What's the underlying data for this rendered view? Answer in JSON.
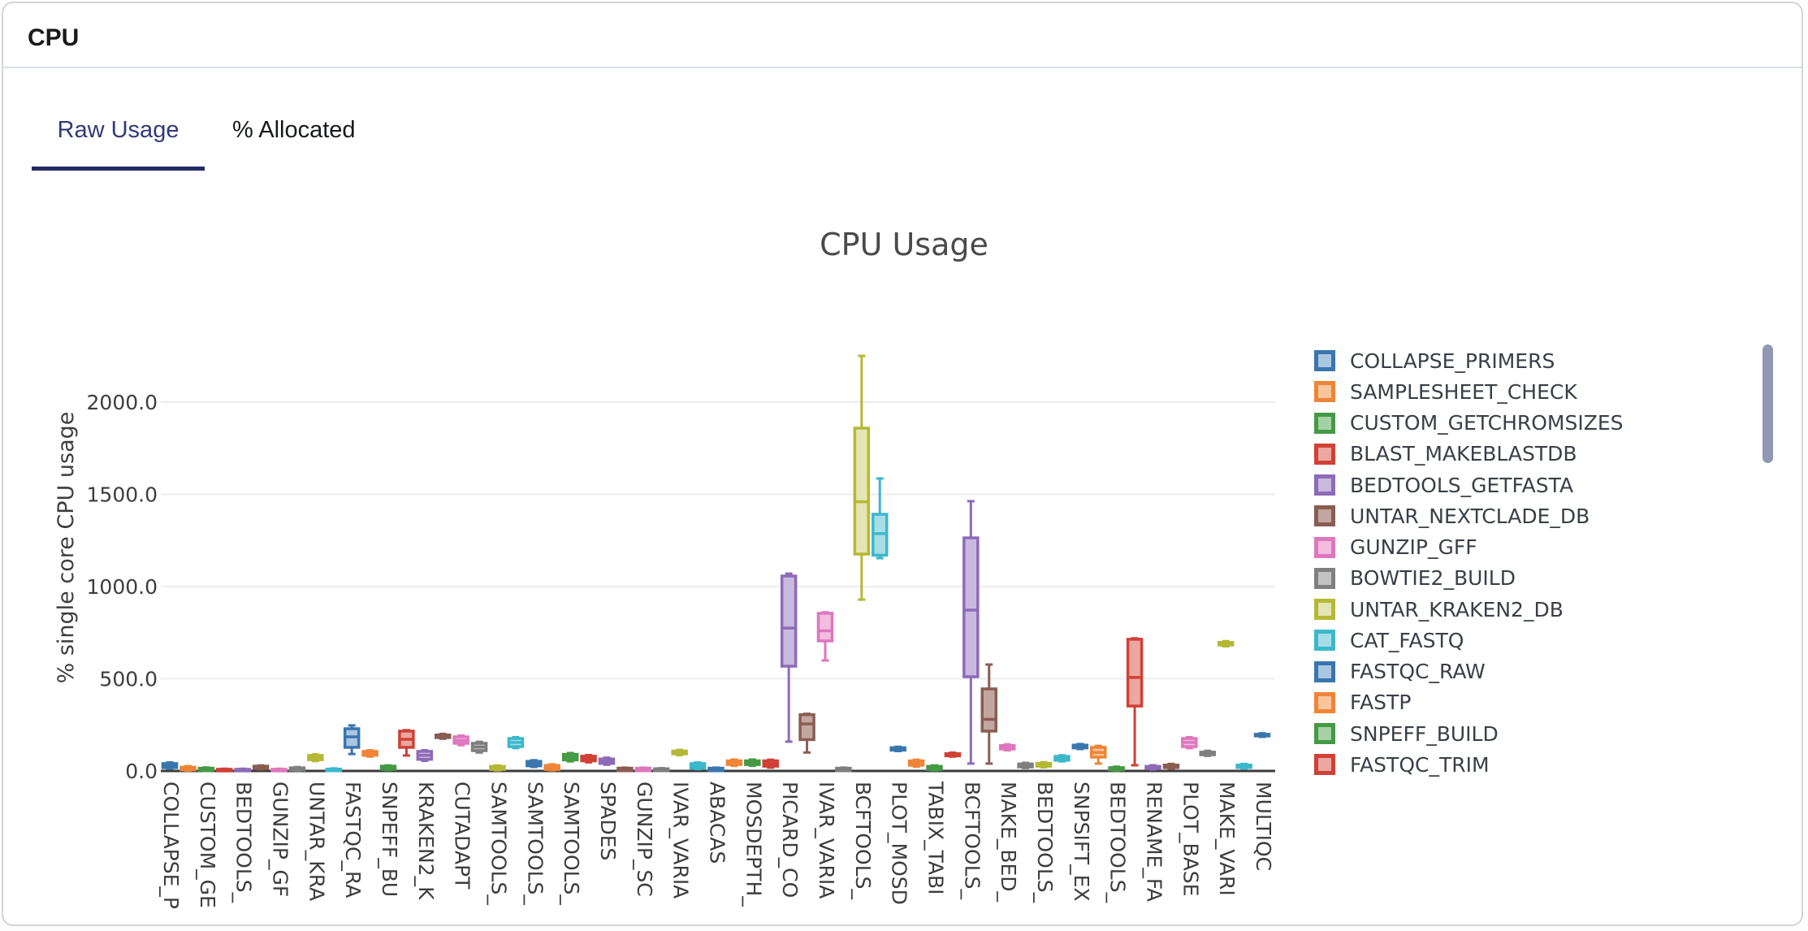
{
  "header": {
    "title": "CPU"
  },
  "tabs": {
    "raw_usage": "Raw Usage",
    "percent_allocated": "% Allocated"
  },
  "chart_data": {
    "type": "boxplot",
    "title": "CPU Usage",
    "ylabel": "% single core CPU usage",
    "ylim": [
      0,
      2350
    ],
    "grid": true,
    "legend_position": "right",
    "yticks": [
      0,
      500,
      1000,
      1500,
      2000
    ],
    "ytick_labels": [
      "0.0",
      "500.0",
      "1000.0",
      "1500.0",
      "2000.0"
    ],
    "x_tick_labels": [
      "COLLAPSE_P",
      "CUSTOM_GE",
      "BEDTOOLS_",
      "GUNZIP_GF",
      "UNTAR_KRA",
      "FASTQC_RA",
      "SNPEFF_BU",
      "KRAKEN2_K",
      "CUTADAPT",
      "SAMTOOLS_",
      "SAMTOOLS_",
      "SAMTOOLS_",
      "SPADES",
      "GUNZIP_SC",
      "IVAR_VARIA",
      "ABACAS",
      "MOSDEPTH_",
      "PICARD_CO",
      "IVAR_VARIA",
      "BCFTOOLS_",
      "PLOT_MOSD",
      "TABIX_TABI",
      "BCFTOOLS_",
      "MAKE_BED_",
      "BEDTOOLS_",
      "SNPSIFT_EX",
      "BEDTOOLS_",
      "RENAME_FA",
      "PLOT_BASE",
      "MAKE_VARI",
      "MULTIQC"
    ],
    "palette": [
      {
        "name": "blue",
        "stroke": "#3a76ae",
        "fill": "#aac7e2"
      },
      {
        "name": "orange",
        "stroke": "#ef8536",
        "fill": "#f9c69c"
      },
      {
        "name": "green",
        "stroke": "#459a45",
        "fill": "#a6d1a6"
      },
      {
        "name": "red",
        "stroke": "#cf4136",
        "fill": "#eda7a1"
      },
      {
        "name": "purple",
        "stroke": "#8d6bb8",
        "fill": "#cab9de"
      },
      {
        "name": "brown",
        "stroke": "#8a5d52",
        "fill": "#c2a7a0"
      },
      {
        "name": "pink",
        "stroke": "#de77be",
        "fill": "#f2bde0"
      },
      {
        "name": "gray",
        "stroke": "#7f7f7f",
        "fill": "#c2c2c2"
      },
      {
        "name": "olive",
        "stroke": "#b5b836",
        "fill": "#e5e4b4"
      },
      {
        "name": "cyan",
        "stroke": "#3cb8cb",
        "fill": "#a6dde8"
      }
    ],
    "legend": [
      {
        "label": "COLLAPSE_PRIMERS",
        "color": "blue"
      },
      {
        "label": "SAMPLESHEET_CHECK",
        "color": "orange"
      },
      {
        "label": "CUSTOM_GETCHROMSIZES",
        "color": "green"
      },
      {
        "label": "BLAST_MAKEBLASTDB",
        "color": "red"
      },
      {
        "label": "BEDTOOLS_GETFASTA",
        "color": "purple"
      },
      {
        "label": "UNTAR_NEXTCLADE_DB",
        "color": "brown"
      },
      {
        "label": "GUNZIP_GFF",
        "color": "pink"
      },
      {
        "label": "BOWTIE2_BUILD",
        "color": "gray"
      },
      {
        "label": "UNTAR_KRAKEN2_DB",
        "color": "olive"
      },
      {
        "label": "CAT_FASTQ",
        "color": "cyan"
      },
      {
        "label": "FASTQC_RAW",
        "color": "blue"
      },
      {
        "label": "FASTP",
        "color": "orange"
      },
      {
        "label": "SNPEFF_BUILD",
        "color": "green"
      },
      {
        "label": "FASTQC_TRIM",
        "color": "red"
      }
    ],
    "boxes": [
      {
        "lo": 12,
        "q1": 18,
        "med": 30,
        "q3": 40,
        "hi": 46
      },
      {
        "lo": 2,
        "q1": 6,
        "med": 12,
        "q3": 20,
        "hi": 26
      },
      {
        "lo": 0,
        "q1": 3,
        "med": 8,
        "q3": 15,
        "hi": 19
      },
      {
        "lo": 0,
        "q1": 1,
        "med": 4,
        "q3": 9,
        "hi": 12
      },
      {
        "lo": 0,
        "q1": 1,
        "med": 4,
        "q3": 9,
        "hi": 12
      },
      {
        "lo": 9,
        "q1": 13,
        "med": 20,
        "q3": 26,
        "hi": 30
      },
      {
        "lo": 0,
        "q1": 1,
        "med": 4,
        "q3": 9,
        "hi": 12
      },
      {
        "lo": 2,
        "q1": 5,
        "med": 10,
        "q3": 17,
        "hi": 21
      },
      {
        "lo": 54,
        "q1": 61,
        "med": 72,
        "q3": 84,
        "hi": 90
      },
      {
        "lo": 0,
        "q1": 1,
        "med": 5,
        "q3": 10,
        "hi": 14
      },
      {
        "lo": 92,
        "q1": 128,
        "med": 185,
        "q3": 229,
        "hi": 247
      },
      {
        "lo": 78,
        "q1": 85,
        "med": 95,
        "q3": 106,
        "hi": 112
      },
      {
        "lo": 5,
        "q1": 9,
        "med": 17,
        "q3": 26,
        "hi": 30
      },
      {
        "lo": 84,
        "q1": 128,
        "med": 172,
        "q3": 216,
        "hi": 221
      },
      {
        "lo": 55,
        "q1": 63,
        "med": 85,
        "q3": 106,
        "hi": 112
      },
      {
        "lo": 175,
        "q1": 181,
        "med": 188,
        "q3": 195,
        "hi": 201
      },
      {
        "lo": 140,
        "q1": 150,
        "med": 165,
        "q3": 185,
        "hi": 192
      },
      {
        "lo": 100,
        "q1": 110,
        "med": 130,
        "q3": 150,
        "hi": 158
      },
      {
        "lo": 4,
        "q1": 8,
        "med": 15,
        "q3": 25,
        "hi": 30
      },
      {
        "lo": 124,
        "q1": 132,
        "med": 155,
        "q3": 176,
        "hi": 183
      },
      {
        "lo": 22,
        "q1": 28,
        "med": 40,
        "q3": 52,
        "hi": 58
      },
      {
        "lo": 4,
        "q1": 8,
        "med": 18,
        "q3": 30,
        "hi": 36
      },
      {
        "lo": 52,
        "q1": 60,
        "med": 75,
        "q3": 90,
        "hi": 97
      },
      {
        "lo": 47,
        "q1": 55,
        "med": 66,
        "q3": 80,
        "hi": 86
      },
      {
        "lo": 34,
        "q1": 41,
        "med": 53,
        "q3": 65,
        "hi": 72
      },
      {
        "lo": 0,
        "q1": 1,
        "med": 8,
        "q3": 15,
        "hi": 18
      },
      {
        "lo": 0,
        "q1": 1,
        "med": 8,
        "q3": 15,
        "hi": 18
      },
      {
        "lo": 0,
        "q1": 1,
        "med": 5,
        "q3": 12,
        "hi": 15
      },
      {
        "lo": 86,
        "q1": 93,
        "med": 100,
        "q3": 108,
        "hi": 114
      },
      {
        "lo": 10,
        "q1": 15,
        "med": 26,
        "q3": 40,
        "hi": 46
      },
      {
        "lo": 0,
        "q1": 1,
        "med": 8,
        "q3": 15,
        "hi": 18
      },
      {
        "lo": 28,
        "q1": 35,
        "med": 45,
        "q3": 55,
        "hi": 62
      },
      {
        "lo": 28,
        "q1": 35,
        "med": 45,
        "q3": 55,
        "hi": 62
      },
      {
        "lo": 18,
        "q1": 26,
        "med": 40,
        "q3": 55,
        "hi": 61
      },
      {
        "lo": 159,
        "q1": 568,
        "med": 775,
        "q3": 1057,
        "hi": 1070
      },
      {
        "lo": 100,
        "q1": 170,
        "med": 255,
        "q3": 305,
        "hi": 310
      },
      {
        "lo": 599,
        "q1": 705,
        "med": 760,
        "q3": 855,
        "hi": 860
      },
      {
        "lo": 0,
        "q1": 1,
        "med": 8,
        "q3": 15,
        "hi": 18
      },
      {
        "lo": 929,
        "q1": 1176,
        "med": 1460,
        "q3": 1859,
        "hi": 2251
      },
      {
        "lo": 1154,
        "q1": 1170,
        "med": 1287,
        "q3": 1392,
        "hi": 1586
      },
      {
        "lo": 108,
        "q1": 113,
        "med": 119,
        "q3": 126,
        "hi": 131
      },
      {
        "lo": 24,
        "q1": 31,
        "med": 43,
        "q3": 55,
        "hi": 61
      },
      {
        "lo": 4,
        "q1": 8,
        "med": 15,
        "q3": 25,
        "hi": 30
      },
      {
        "lo": 78,
        "q1": 82,
        "med": 88,
        "q3": 94,
        "hi": 99
      },
      {
        "lo": 40,
        "q1": 511,
        "med": 872,
        "q3": 1264,
        "hi": 1463
      },
      {
        "lo": 40,
        "q1": 216,
        "med": 280,
        "q3": 445,
        "hi": 577
      },
      {
        "lo": 112,
        "q1": 119,
        "med": 128,
        "q3": 138,
        "hi": 144
      },
      {
        "lo": 16,
        "q1": 22,
        "med": 30,
        "q3": 38,
        "hi": 44
      },
      {
        "lo": 20,
        "q1": 26,
        "med": 33,
        "q3": 41,
        "hi": 47
      },
      {
        "lo": 52,
        "q1": 58,
        "med": 68,
        "q3": 79,
        "hi": 85
      },
      {
        "lo": 119,
        "q1": 125,
        "med": 132,
        "q3": 140,
        "hi": 146
      },
      {
        "lo": 40,
        "q1": 75,
        "med": 100,
        "q3": 128,
        "hi": 136
      },
      {
        "lo": 2,
        "q1": 6,
        "med": 10,
        "q3": 18,
        "hi": 23
      },
      {
        "lo": 31,
        "q1": 352,
        "med": 507,
        "q3": 714,
        "hi": 719
      },
      {
        "lo": 8,
        "q1": 13,
        "med": 18,
        "q3": 25,
        "hi": 31
      },
      {
        "lo": 12,
        "q1": 18,
        "med": 25,
        "q3": 32,
        "hi": 38
      },
      {
        "lo": 124,
        "q1": 132,
        "med": 155,
        "q3": 176,
        "hi": 183
      },
      {
        "lo": 82,
        "q1": 88,
        "med": 95,
        "q3": 102,
        "hi": 109
      },
      {
        "lo": 676,
        "q1": 683,
        "med": 690,
        "q3": 697,
        "hi": 704
      },
      {
        "lo": 14,
        "q1": 19,
        "med": 25,
        "q3": 32,
        "hi": 38
      },
      {
        "lo": 185,
        "q1": 190,
        "med": 194,
        "q3": 199,
        "hi": 204
      }
    ]
  }
}
